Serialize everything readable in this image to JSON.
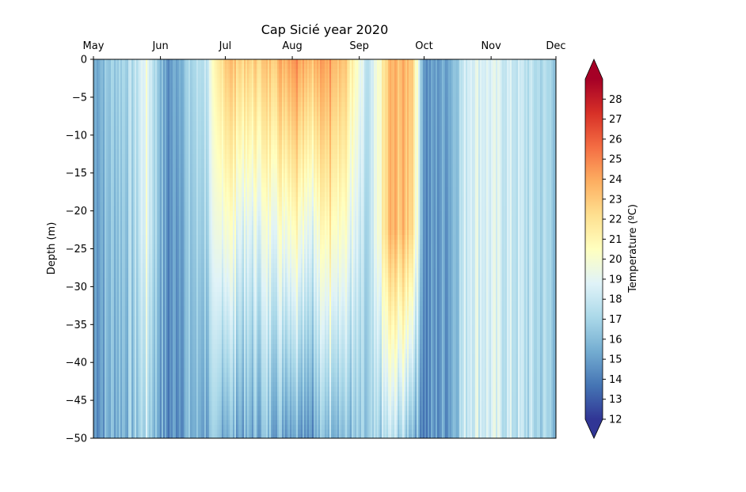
{
  "chart_data": {
    "type": "heatmap",
    "title": "Cap Sicié year 2020",
    "xlabel": "",
    "ylabel": "Depth (m)",
    "x_ticks": [
      "May",
      "Jun",
      "Jul",
      "Aug",
      "Sep",
      "Oct",
      "Nov",
      "Dec"
    ],
    "x_range": [
      "2020-05-01",
      "2020-12-01"
    ],
    "y_ticks": [
      0,
      -5,
      -10,
      -15,
      -20,
      -25,
      -30,
      -35,
      -40,
      -45,
      -50
    ],
    "ylim": [
      -50,
      0
    ],
    "colorbar": {
      "label": "Temperature (ºC)",
      "range": [
        12,
        29
      ],
      "ticks": [
        12,
        13,
        14,
        15,
        16,
        17,
        18,
        19,
        20,
        21,
        22,
        23,
        24,
        25,
        26,
        27,
        28
      ],
      "extend": "both",
      "colormap": "RdYlBu_r"
    },
    "temperature_profiles": [
      {
        "date": "2020-05-01",
        "surface": 15.5,
        "mid": 15.2,
        "bottom": 14.8
      },
      {
        "date": "2020-05-10",
        "surface": 16.8,
        "mid": 16.3,
        "bottom": 15.8
      },
      {
        "date": "2020-05-20",
        "surface": 17.5,
        "mid": 17.0,
        "bottom": 16.2
      },
      {
        "date": "2020-05-25",
        "surface": 19.5,
        "mid": 19.3,
        "bottom": 17.5
      },
      {
        "date": "2020-06-04",
        "surface": 14.5,
        "mid": 14.3,
        "bottom": 14.2
      },
      {
        "date": "2020-06-12",
        "surface": 16.5,
        "mid": 16.0,
        "bottom": 15.5
      },
      {
        "date": "2020-06-22",
        "surface": 18.0,
        "mid": 17.2,
        "bottom": 15.5
      },
      {
        "date": "2020-07-01",
        "surface": 23.5,
        "mid": 20.5,
        "bottom": 16.0
      },
      {
        "date": "2020-07-10",
        "surface": 22.5,
        "mid": 18.5,
        "bottom": 15.2
      },
      {
        "date": "2020-07-20",
        "surface": 23.0,
        "mid": 19.5,
        "bottom": 16.0
      },
      {
        "date": "2020-07-28",
        "surface": 24.0,
        "mid": 20.0,
        "bottom": 15.5
      },
      {
        "date": "2020-08-02",
        "surface": 25.0,
        "mid": 21.0,
        "bottom": 15.8
      },
      {
        "date": "2020-08-10",
        "surface": 23.5,
        "mid": 19.0,
        "bottom": 15.0
      },
      {
        "date": "2020-08-18",
        "surface": 24.5,
        "mid": 21.5,
        "bottom": 16.5
      },
      {
        "date": "2020-08-25",
        "surface": 23.0,
        "mid": 20.0,
        "bottom": 16.0
      },
      {
        "date": "2020-09-05",
        "surface": 17.0,
        "mid": 16.5,
        "bottom": 16.0
      },
      {
        "date": "2020-09-15",
        "surface": 23.5,
        "mid": 23.5,
        "bottom": 17.5
      },
      {
        "date": "2020-09-25",
        "surface": 23.5,
        "mid": 23.0,
        "bottom": 16.5
      },
      {
        "date": "2020-10-01",
        "surface": 14.5,
        "mid": 14.3,
        "bottom": 14.2
      },
      {
        "date": "2020-10-12",
        "surface": 15.5,
        "mid": 15.3,
        "bottom": 15.2
      },
      {
        "date": "2020-10-22",
        "surface": 19.0,
        "mid": 19.0,
        "bottom": 18.8
      },
      {
        "date": "2020-11-05",
        "surface": 18.5,
        "mid": 18.4,
        "bottom": 18.2
      },
      {
        "date": "2020-11-20",
        "surface": 17.5,
        "mid": 17.4,
        "bottom": 17.2
      },
      {
        "date": "2020-12-01",
        "surface": 16.8,
        "mid": 16.7,
        "bottom": 16.5
      }
    ]
  }
}
